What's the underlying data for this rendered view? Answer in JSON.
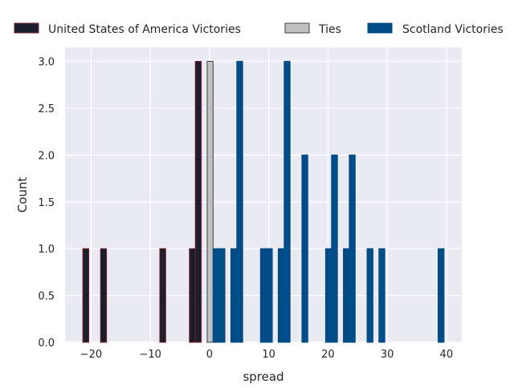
{
  "chart_data": {
    "type": "bar",
    "xlabel": "spread",
    "ylabel": "Count",
    "xlim": [
      -24.4,
      42.6
    ],
    "ylim": [
      0,
      3.15
    ],
    "xticks": [
      -20,
      -10,
      0,
      10,
      20,
      30,
      40
    ],
    "xtick_labels": [
      "−20",
      "−10",
      "0",
      "10",
      "20",
      "30",
      "40"
    ],
    "yticks": [
      0,
      0.5,
      1,
      1.5,
      2,
      2.5,
      3
    ],
    "ytick_labels": [
      "0.0",
      "0.5",
      "1.0",
      "1.5",
      "2.0",
      "2.5",
      "3.0"
    ],
    "bin_width": 1,
    "grid": true,
    "legend_position": "top",
    "series": [
      {
        "name": "United States of America Victories",
        "color": "#1a1f2e",
        "edge": "#7a1a2a",
        "x": [
          -21,
          -18,
          -8,
          -3,
          -2
        ],
        "values": [
          1,
          1,
          1,
          1,
          3
        ]
      },
      {
        "name": "Ties",
        "color": "#c0c0c0",
        "edge": "#404040",
        "x": [
          0
        ],
        "values": [
          3
        ]
      },
      {
        "name": "Scotland Victories",
        "color": "#004c87",
        "edge": "#004c87",
        "x": [
          1,
          2,
          4,
          5,
          9,
          10,
          12,
          13,
          16,
          20,
          21,
          23,
          24,
          27,
          29,
          39
        ],
        "values": [
          1,
          1,
          1,
          3,
          1,
          1,
          1,
          3,
          2,
          1,
          2,
          1,
          2,
          1,
          1,
          1
        ]
      }
    ]
  }
}
